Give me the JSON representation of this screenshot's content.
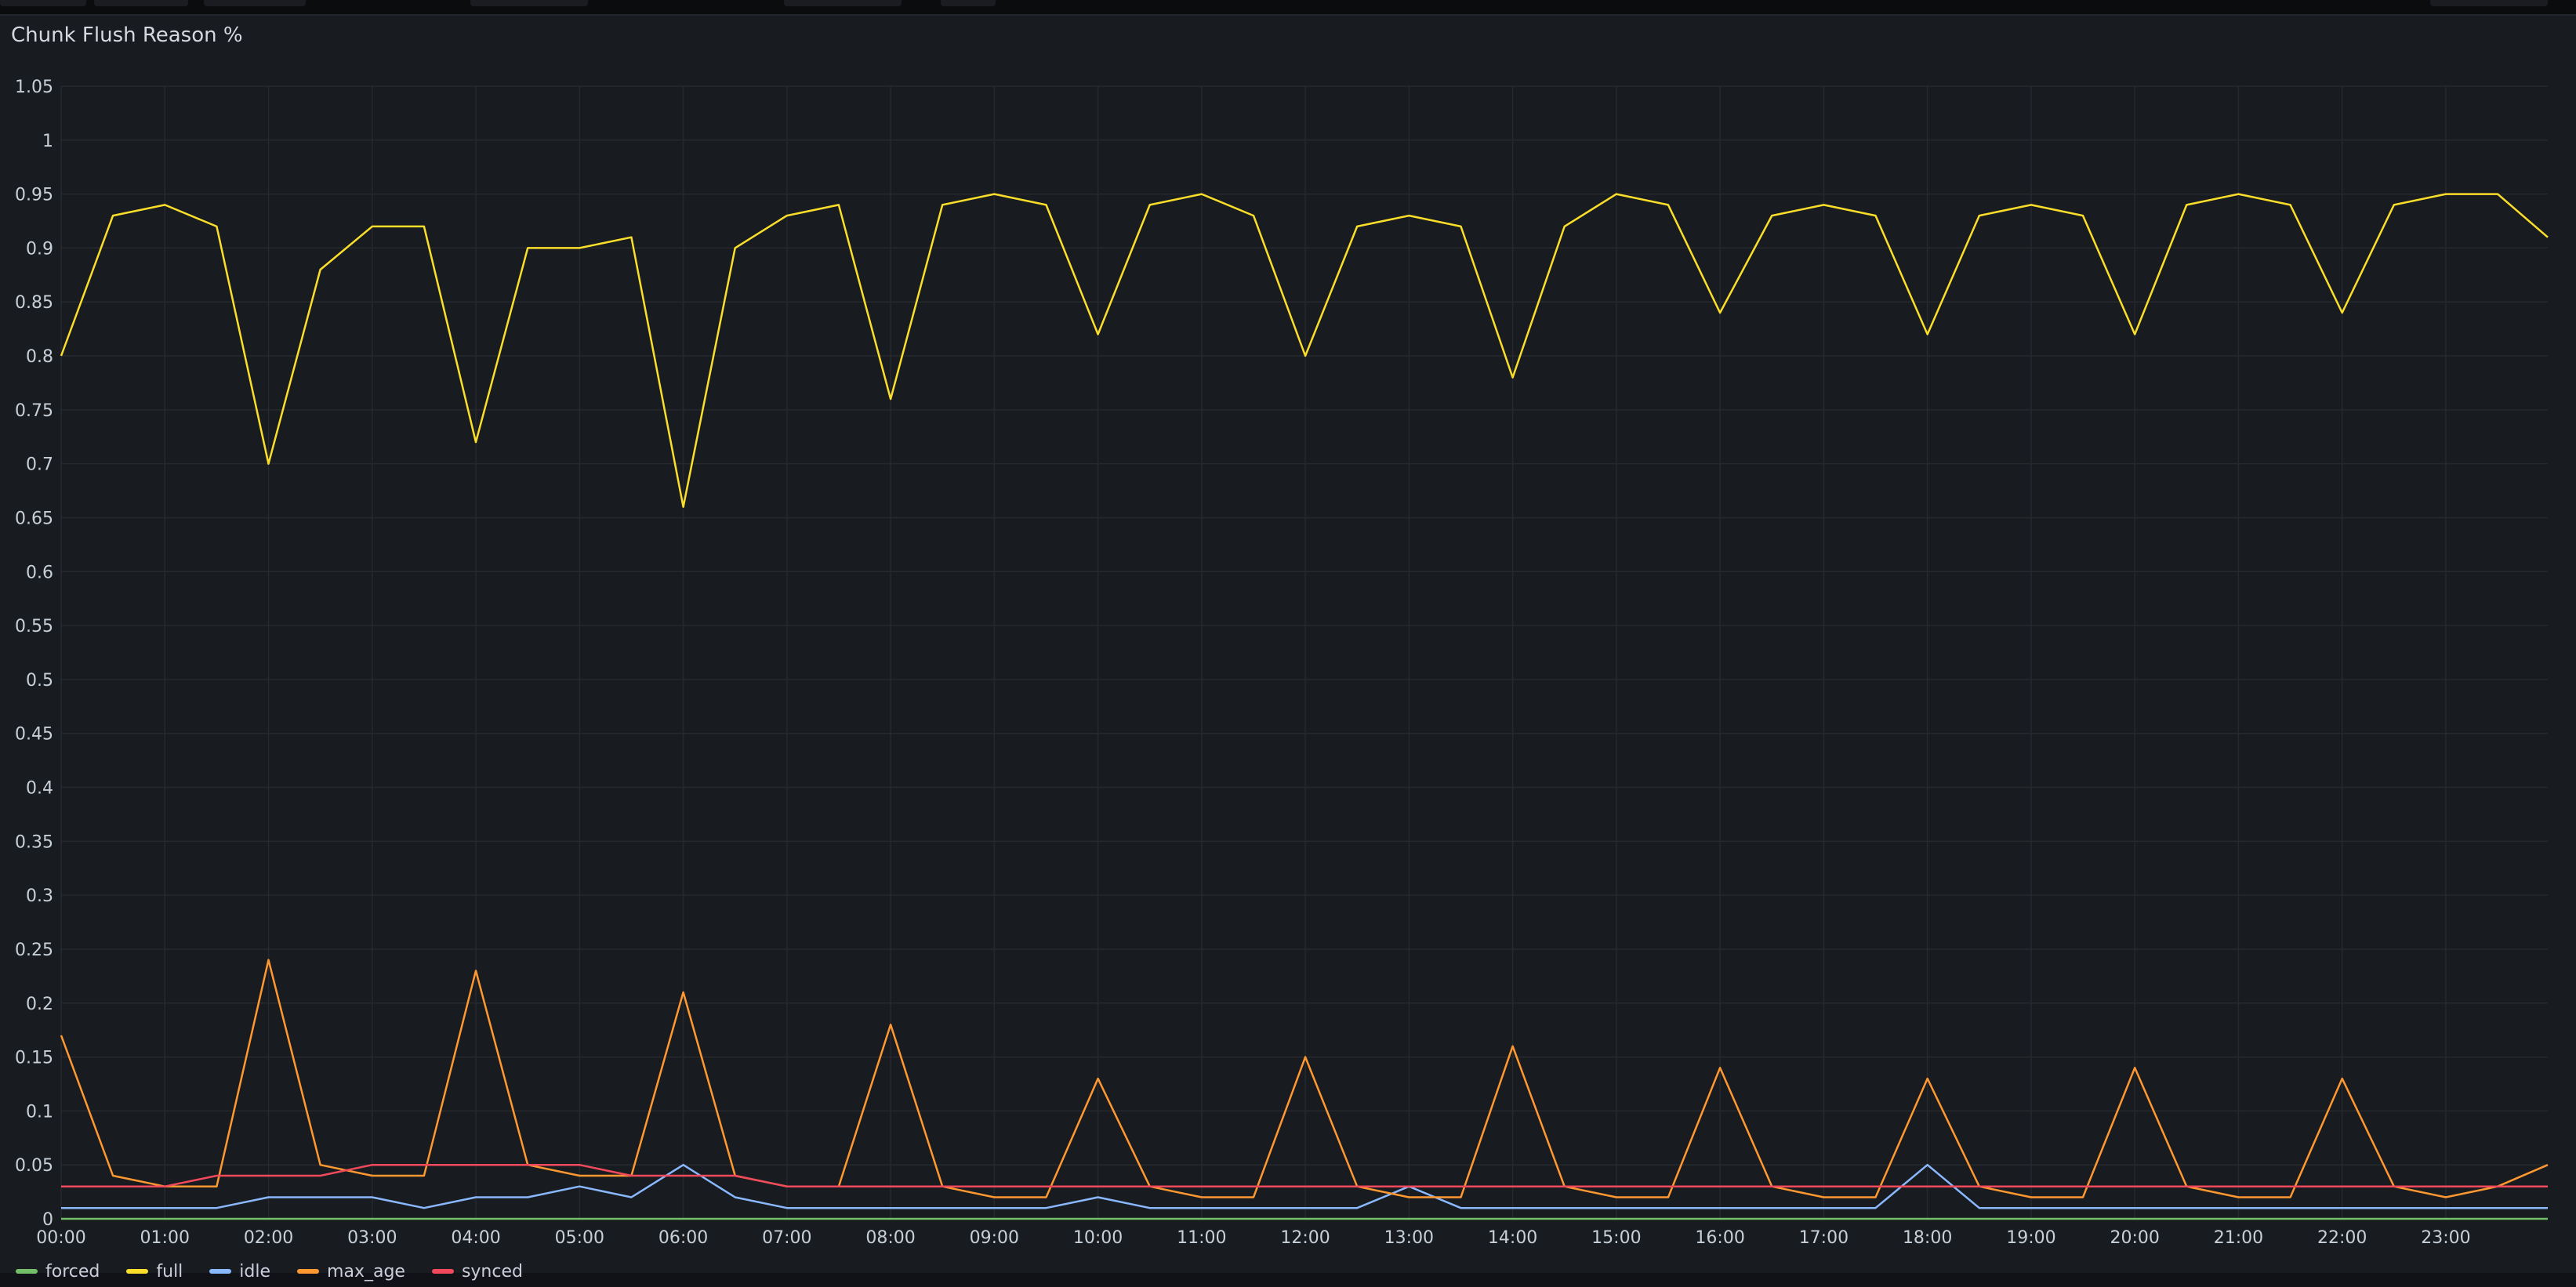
{
  "panel": {
    "title": "Chunk Flush Reason %"
  },
  "colors": {
    "forced": "#73bf69",
    "full": "#fade2a",
    "idle": "#8ab8ff",
    "max_age": "#ff9830",
    "synced": "#f2495c"
  },
  "chart_data": {
    "type": "line",
    "title": "Chunk Flush Reason %",
    "xlabel": "",
    "ylabel": "",
    "xlim": [
      "00:00",
      "23:59"
    ],
    "ylim": [
      0,
      1.05
    ],
    "y_ticks": [
      "0",
      "0.05",
      "0.1",
      "0.15",
      "0.2",
      "0.25",
      "0.3",
      "0.35",
      "0.4",
      "0.45",
      "0.5",
      "0.55",
      "0.6",
      "0.65",
      "0.7",
      "0.75",
      "0.8",
      "0.85",
      "0.9",
      "0.95",
      "1",
      "1.05"
    ],
    "x_ticks": [
      "00:00",
      "01:00",
      "02:00",
      "03:00",
      "04:00",
      "05:00",
      "06:00",
      "07:00",
      "08:00",
      "09:00",
      "10:00",
      "11:00",
      "12:00",
      "13:00",
      "14:00",
      "15:00",
      "16:00",
      "17:00",
      "18:00",
      "19:00",
      "20:00",
      "21:00",
      "22:00",
      "23:00"
    ],
    "grid": true,
    "legend_position": "bottom-left",
    "x": [
      "00:00",
      "00:30",
      "01:00",
      "01:30",
      "02:00",
      "02:30",
      "03:00",
      "03:30",
      "04:00",
      "04:30",
      "05:00",
      "05:30",
      "06:00",
      "06:30",
      "07:00",
      "07:30",
      "08:00",
      "08:30",
      "09:00",
      "09:30",
      "10:00",
      "10:30",
      "11:00",
      "11:30",
      "12:00",
      "12:30",
      "13:00",
      "13:30",
      "14:00",
      "14:30",
      "15:00",
      "15:30",
      "16:00",
      "16:30",
      "17:00",
      "17:30",
      "18:00",
      "18:30",
      "19:00",
      "19:30",
      "20:00",
      "20:30",
      "21:00",
      "21:30",
      "22:00",
      "22:30",
      "23:00",
      "23:30",
      "23:59"
    ],
    "series": [
      {
        "name": "forced",
        "values": [
          0,
          0,
          0,
          0,
          0,
          0,
          0,
          0,
          0,
          0,
          0,
          0,
          0,
          0,
          0,
          0,
          0,
          0,
          0,
          0,
          0,
          0,
          0,
          0,
          0,
          0,
          0,
          0,
          0,
          0,
          0,
          0,
          0,
          0,
          0,
          0,
          0,
          0,
          0,
          0,
          0,
          0,
          0,
          0,
          0,
          0,
          0,
          0,
          0
        ]
      },
      {
        "name": "full",
        "values": [
          0.8,
          0.93,
          0.94,
          0.92,
          0.7,
          0.88,
          0.92,
          0.92,
          0.72,
          0.9,
          0.9,
          0.91,
          0.66,
          0.9,
          0.93,
          0.94,
          0.76,
          0.94,
          0.95,
          0.94,
          0.82,
          0.94,
          0.95,
          0.93,
          0.8,
          0.92,
          0.93,
          0.92,
          0.78,
          0.92,
          0.95,
          0.94,
          0.84,
          0.93,
          0.94,
          0.93,
          0.82,
          0.93,
          0.94,
          0.93,
          0.82,
          0.94,
          0.95,
          0.94,
          0.84,
          0.94,
          0.95,
          0.95,
          0.91
        ]
      },
      {
        "name": "idle",
        "values": [
          0.01,
          0.01,
          0.01,
          0.01,
          0.02,
          0.02,
          0.02,
          0.01,
          0.02,
          0.02,
          0.03,
          0.02,
          0.05,
          0.02,
          0.01,
          0.01,
          0.01,
          0.01,
          0.01,
          0.01,
          0.02,
          0.01,
          0.01,
          0.01,
          0.01,
          0.01,
          0.03,
          0.01,
          0.01,
          0.01,
          0.01,
          0.01,
          0.01,
          0.01,
          0.01,
          0.01,
          0.05,
          0.01,
          0.01,
          0.01,
          0.01,
          0.01,
          0.01,
          0.01,
          0.01,
          0.01,
          0.01,
          0.01,
          0.01
        ]
      },
      {
        "name": "max_age",
        "values": [
          0.17,
          0.04,
          0.03,
          0.03,
          0.24,
          0.05,
          0.04,
          0.04,
          0.23,
          0.05,
          0.04,
          0.04,
          0.21,
          0.04,
          0.03,
          0.03,
          0.18,
          0.03,
          0.02,
          0.02,
          0.13,
          0.03,
          0.02,
          0.02,
          0.15,
          0.03,
          0.02,
          0.02,
          0.16,
          0.03,
          0.02,
          0.02,
          0.14,
          0.03,
          0.02,
          0.02,
          0.13,
          0.03,
          0.02,
          0.02,
          0.14,
          0.03,
          0.02,
          0.02,
          0.13,
          0.03,
          0.02,
          0.03,
          0.05
        ]
      },
      {
        "name": "synced",
        "values": [
          0.03,
          0.03,
          0.03,
          0.04,
          0.04,
          0.04,
          0.05,
          0.05,
          0.05,
          0.05,
          0.05,
          0.04,
          0.04,
          0.04,
          0.03,
          0.03,
          0.03,
          0.03,
          0.03,
          0.03,
          0.03,
          0.03,
          0.03,
          0.03,
          0.03,
          0.03,
          0.03,
          0.03,
          0.03,
          0.03,
          0.03,
          0.03,
          0.03,
          0.03,
          0.03,
          0.03,
          0.03,
          0.03,
          0.03,
          0.03,
          0.03,
          0.03,
          0.03,
          0.03,
          0.03,
          0.03,
          0.03,
          0.03,
          0.03
        ]
      }
    ]
  },
  "legend": [
    {
      "label": "forced",
      "color": "#73bf69"
    },
    {
      "label": "full",
      "color": "#fade2a"
    },
    {
      "label": "idle",
      "color": "#8ab8ff"
    },
    {
      "label": "max_age",
      "color": "#ff9830"
    },
    {
      "label": "synced",
      "color": "#f2495c"
    }
  ]
}
